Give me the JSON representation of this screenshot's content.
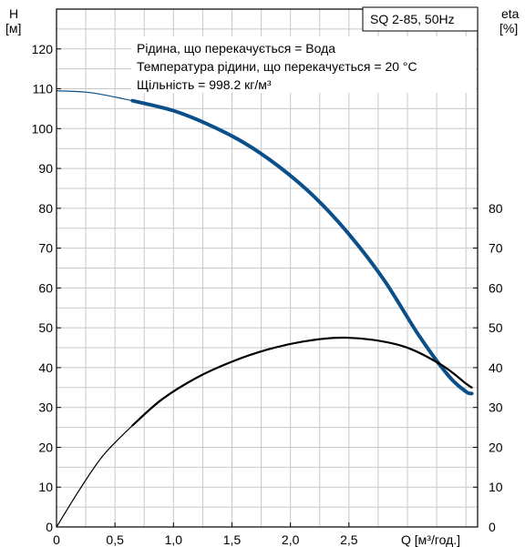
{
  "chart_data": {
    "type": "line",
    "title": "SQ 2-85, 50Hz",
    "annotations": [
      "Рідина, що перекачується = Вода",
      "Температура рідини, що перекачується = 20 °C",
      "Щільність = 998.2 кг/м³"
    ],
    "left_axis": {
      "label_line1": "H",
      "label_line2": "[м]",
      "ylim": [
        0,
        130
      ],
      "ticks": [
        0,
        10,
        20,
        30,
        40,
        50,
        60,
        70,
        80,
        90,
        100,
        110,
        120
      ]
    },
    "right_axis": {
      "label_line1": "eta",
      "label_line2": "[%]",
      "ylim": [
        0,
        130
      ],
      "ticks": [
        0,
        10,
        20,
        30,
        40,
        50,
        60,
        70,
        80
      ]
    },
    "x_axis": {
      "label": "Q [м³/год.]",
      "xlim": [
        0,
        3.6
      ],
      "ticks": [
        0,
        0.5,
        1.0,
        1.5,
        2.0,
        2.5
      ],
      "tick_labels": [
        "0",
        "0,5",
        "1,0",
        "1,5",
        "2,0",
        "2,5"
      ]
    },
    "grid": true,
    "series": [
      {
        "axis": "left",
        "color": "#0b4f8a",
        "x": [
          0.0,
          0.3,
          0.65,
          1.0,
          1.3,
          1.6,
          1.9,
          2.2,
          2.5,
          2.8,
          3.1,
          3.35,
          3.5,
          3.55
        ],
        "y": [
          109.5,
          109,
          107,
          104.5,
          101,
          96.5,
          90.5,
          83,
          73.5,
          62,
          48,
          38,
          34,
          33.5
        ]
      },
      {
        "axis": "right",
        "color": "#000000",
        "x": [
          0.0,
          0.2,
          0.4,
          0.65,
          0.9,
          1.2,
          1.5,
          1.8,
          2.1,
          2.4,
          2.7,
          3.0,
          3.3,
          3.5,
          3.55
        ],
        "y": [
          0,
          9.5,
          18,
          25.5,
          32,
          37.5,
          41.5,
          44.5,
          46.5,
          47.5,
          47,
          45,
          40.5,
          36,
          35
        ]
      }
    ]
  }
}
